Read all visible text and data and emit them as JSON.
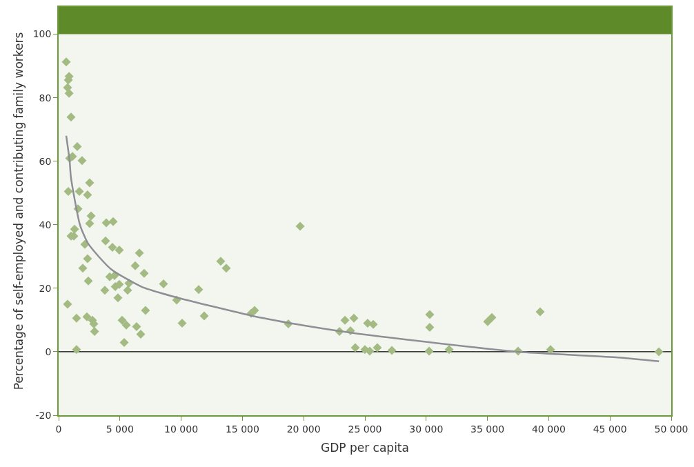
{
  "chart_data": {
    "type": "scatter",
    "xlabel": "GDP per capita",
    "ylabel": "Percentage of self-employed and contributing family workers",
    "xlim": [
      0,
      50000
    ],
    "xticks": [
      0,
      {
        "value": 5000,
        "label": "5 000"
      },
      {
        "value": 10000,
        "label": "10 000"
      },
      {
        "value": 15000,
        "label": "15 000"
      },
      {
        "value": 20000,
        "label": "20 000"
      },
      {
        "value": 25000,
        "label": "25 000"
      },
      {
        "value": 30000,
        "label": "30 000"
      },
      {
        "value": 35000,
        "label": "35 000"
      },
      {
        "value": 40000,
        "label": "40 000"
      },
      {
        "value": 45000,
        "label": "45 000"
      },
      {
        "value": 50000,
        "label": "50 000"
      }
    ],
    "ylim": [
      -20,
      108.6
    ],
    "yticks": [
      -20,
      0,
      20,
      40,
      60,
      80,
      100
    ],
    "grid": false,
    "marker": "diamond",
    "bands": [
      {
        "axis": "y",
        "from": 100,
        "to": 108.6,
        "color": "#5e8a2a"
      }
    ],
    "ref_lines": [
      {
        "axis": "y",
        "value": 0,
        "color": "#000000"
      }
    ],
    "series": [
      {
        "color": "#a3bb83",
        "x": [
          620,
          850,
          790,
          730,
          850,
          1010,
          900,
          1130,
          1520,
          1910,
          790,
          1690,
          2530,
          2360,
          2650,
          1580,
          1240,
          1300,
          1010,
          2140,
          2530,
          3890,
          4450,
          3830,
          4390,
          4950,
          2360,
          1970,
          2420,
          4170,
          4560,
          3770,
          4620,
          4950,
          5740,
          5630,
          6590,
          6250,
          6980,
          4840,
          730,
          8560,
          2310,
          1460,
          2760,
          2870,
          2930,
          7090,
          5180,
          5520,
          6360,
          6700,
          5350,
          1460,
          9630,
          10080,
          11430,
          11880,
          13230,
          13680,
          15710,
          15990,
          18750,
          19710,
          22920,
          23370,
          23820,
          24100,
          24210,
          25000,
          25220,
          25390,
          25680,
          26010,
          27200,
          30290,
          30290,
          30240,
          31870,
          35020,
          35360,
          37500,
          39300,
          40150,
          48990
        ],
        "values": [
          91.3,
          86.7,
          85.6,
          83.2,
          81.4,
          73.9,
          60.9,
          61.5,
          64.6,
          60.2,
          50.5,
          50.5,
          53.2,
          49.4,
          42.8,
          45.0,
          36.4,
          38.6,
          36.4,
          33.8,
          40.4,
          40.6,
          41.0,
          34.9,
          32.9,
          32.0,
          29.3,
          26.3,
          22.3,
          23.6,
          24.0,
          19.4,
          20.5,
          21.2,
          21.6,
          19.4,
          31.1,
          27.1,
          24.7,
          17.0,
          15.0,
          21.4,
          11.0,
          10.6,
          9.9,
          8.8,
          6.4,
          13.0,
          9.9,
          8.4,
          7.9,
          5.5,
          2.9,
          0.7,
          16.3,
          9.0,
          19.6,
          11.3,
          28.5,
          26.3,
          12.1,
          13.0,
          8.8,
          39.5,
          6.4,
          9.9,
          6.6,
          10.6,
          1.3,
          0.7,
          9.0,
          0.2,
          8.6,
          1.3,
          0.4,
          11.7,
          7.7,
          0.2,
          0.7,
          9.5,
          10.8,
          0.2,
          12.6,
          0.7,
          0.0
        ]
      },
      {
        "type": "line",
        "color": "#8e8e96",
        "marker": "none",
        "x": [
          620,
          900,
          1000,
          1740,
          2420,
          4280,
          6760,
          8330,
          9740,
          15820,
          20160,
          25220,
          37500,
          45660,
          49000
        ],
        "values": [
          68,
          60,
          55,
          40,
          34,
          26,
          20.5,
          18.5,
          17,
          11.3,
          8.2,
          5.3,
          0,
          -1.8,
          -3
        ]
      }
    ]
  }
}
